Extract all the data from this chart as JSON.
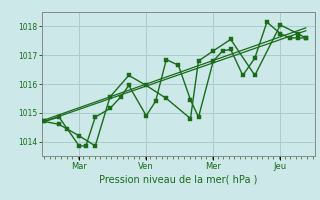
{
  "background_color": "#cce8e8",
  "grid_color": "#aacccc",
  "line_color": "#1a6b1a",
  "tick_color": "#1a6b1a",
  "xlabel": "Pression niveau de la mer( hPa )",
  "ylim": [
    1013.5,
    1018.5
  ],
  "yticks": [
    1014,
    1015,
    1016,
    1017,
    1018
  ],
  "xtick_labels": [
    "Mar",
    "Ven",
    "Mer",
    "Jeu"
  ],
  "xtick_positions": [
    0.13,
    0.38,
    0.63,
    0.88
  ],
  "series": [
    {
      "x": [
        0.0,
        0.055,
        0.085,
        0.13,
        0.155,
        0.19,
        0.245,
        0.285,
        0.315,
        0.38,
        0.415,
        0.455,
        0.5,
        0.545,
        0.575,
        0.63,
        0.665,
        0.695,
        0.74,
        0.785,
        0.83,
        0.88,
        0.915,
        0.945,
        0.975
      ],
      "y": [
        1014.7,
        1014.85,
        1014.45,
        1013.85,
        1013.85,
        1014.85,
        1015.15,
        1015.55,
        1015.95,
        1014.9,
        1015.4,
        1016.85,
        1016.65,
        1015.45,
        1014.85,
        1016.8,
        1017.15,
        1017.2,
        1016.3,
        1016.9,
        1018.15,
        1017.75,
        1017.6,
        1017.6,
        1017.6
      ],
      "marker": true,
      "lw": 1.0
    },
    {
      "x": [
        0.0,
        0.055,
        0.13,
        0.19,
        0.245,
        0.315,
        0.38,
        0.455,
        0.545,
        0.575,
        0.63,
        0.695,
        0.785,
        0.88,
        0.945,
        0.975
      ],
      "y": [
        1014.7,
        1014.6,
        1014.2,
        1013.85,
        1015.55,
        1016.3,
        1015.95,
        1015.5,
        1014.8,
        1016.8,
        1017.15,
        1017.55,
        1016.3,
        1018.05,
        1017.75,
        1017.6
      ],
      "marker": true,
      "lw": 1.0
    },
    {
      "x": [
        0.0,
        0.975
      ],
      "y": [
        1014.7,
        1017.85
      ],
      "marker": false,
      "lw": 0.9
    },
    {
      "x": [
        0.0,
        0.975
      ],
      "y": [
        1014.75,
        1017.95
      ],
      "marker": false,
      "lw": 0.9
    }
  ]
}
